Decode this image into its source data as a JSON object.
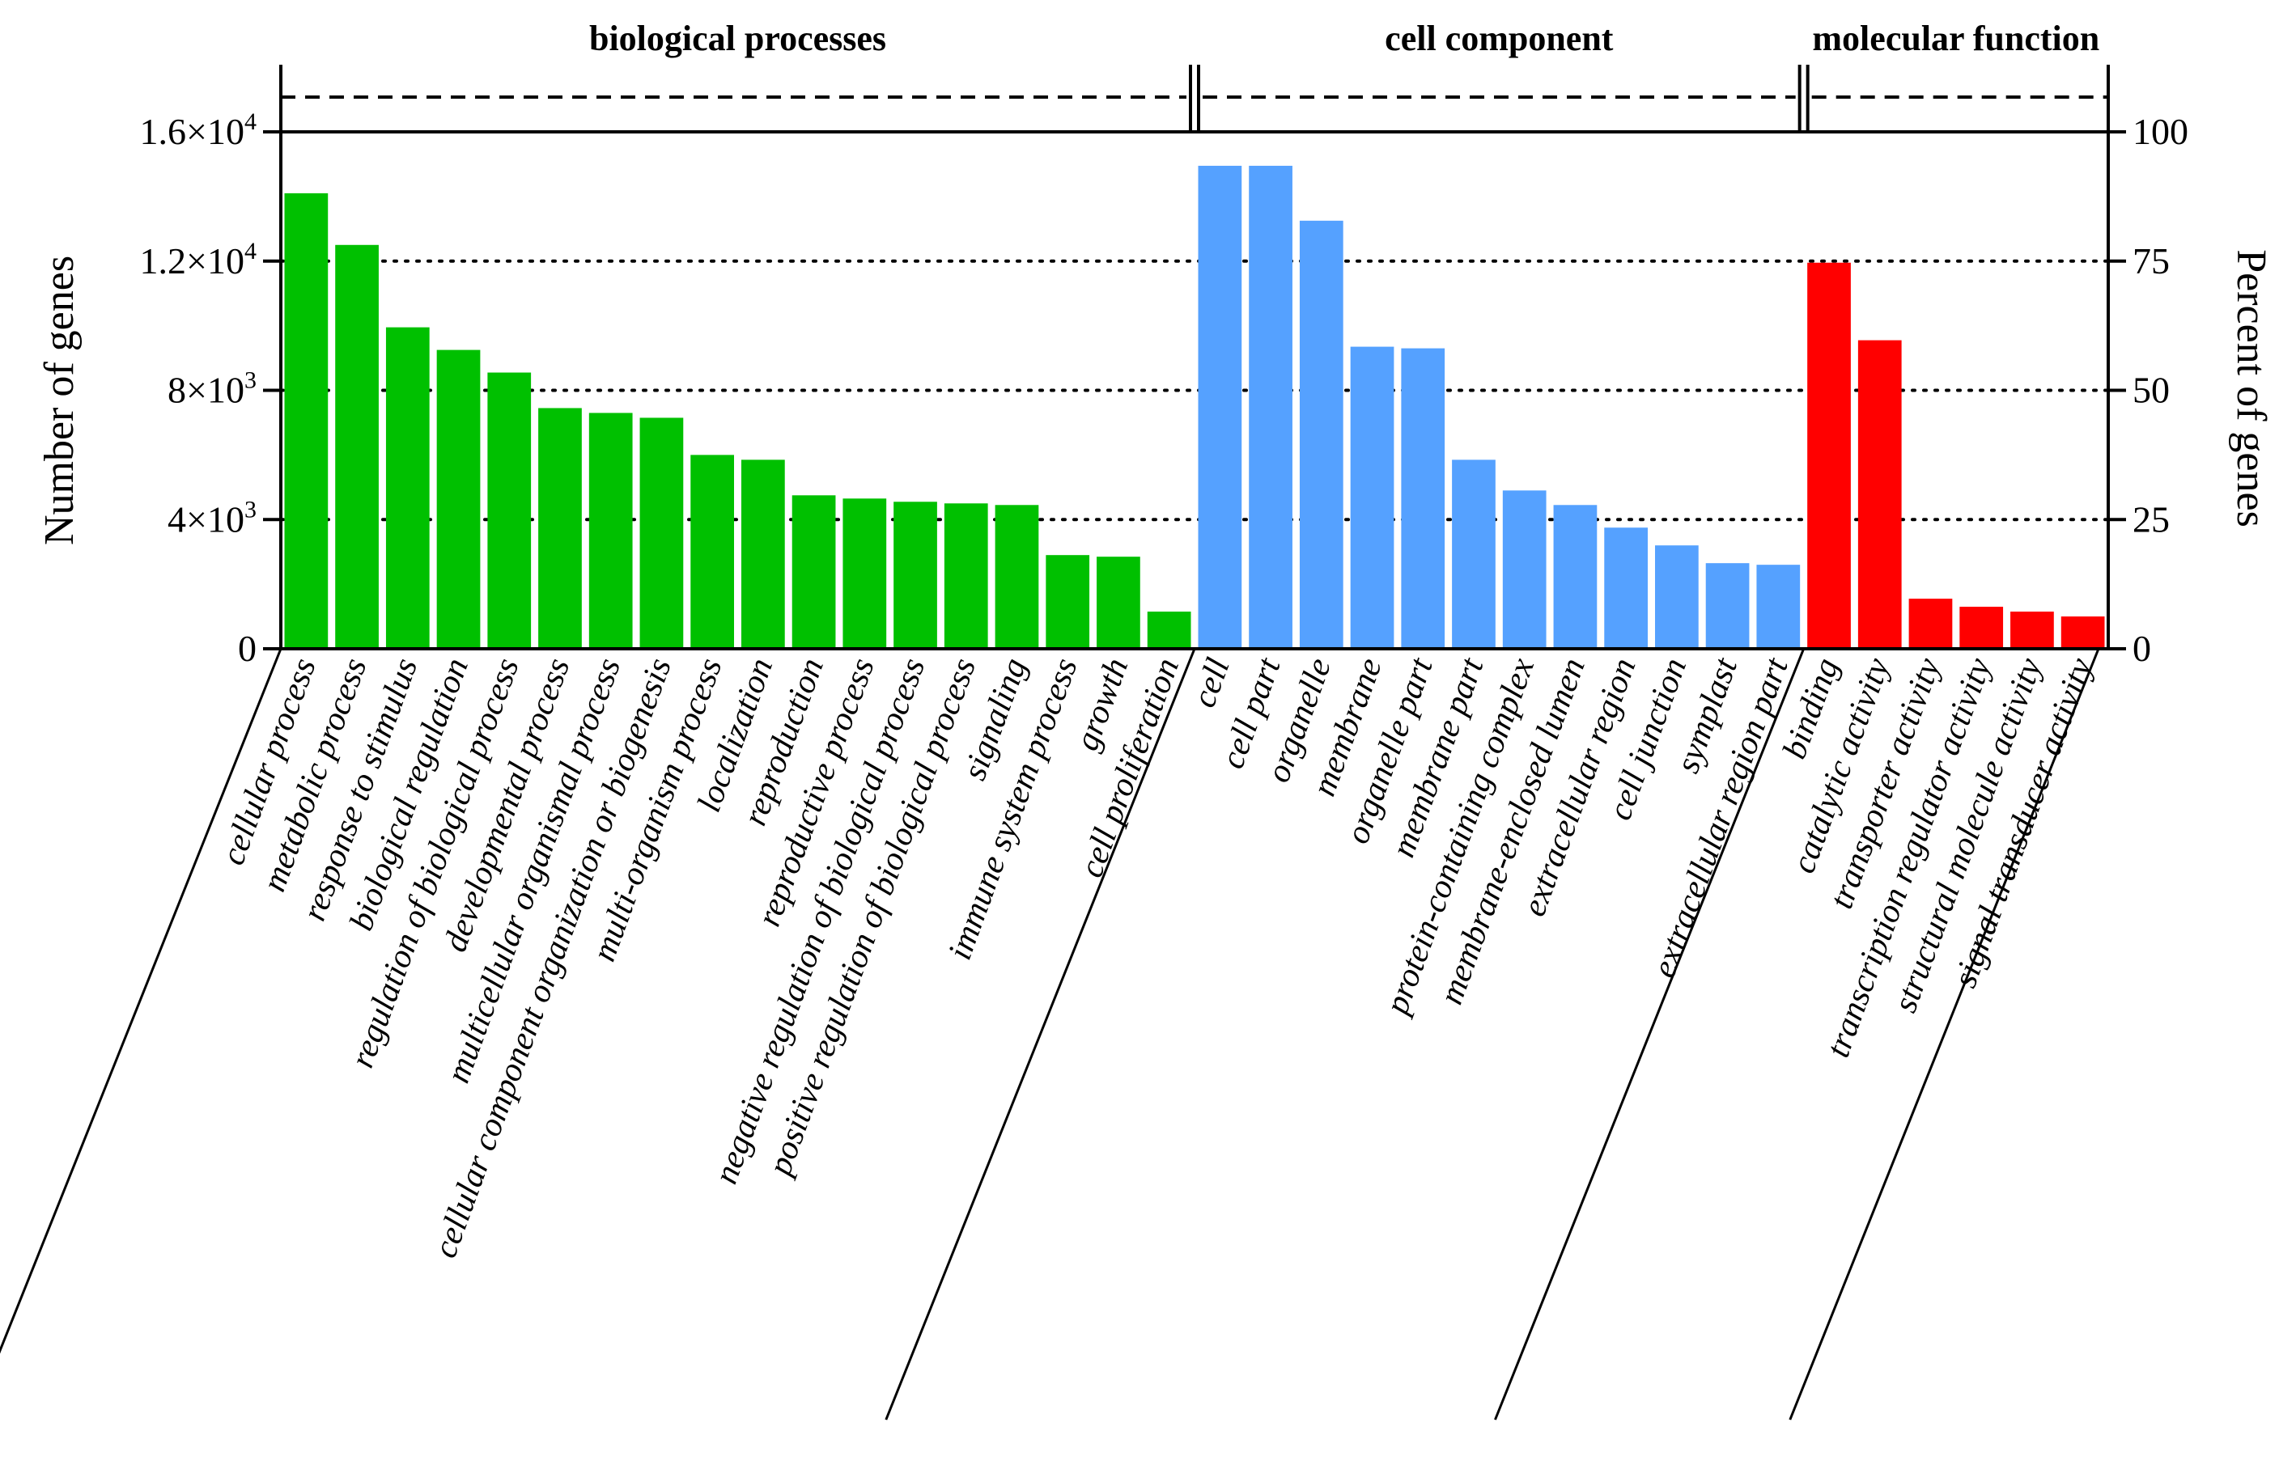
{
  "chart_data": {
    "type": "bar",
    "ylabel": "Number of genes",
    "y2label": "Percent of genes",
    "ylim": [
      0,
      16000
    ],
    "y2lim": [
      0,
      100
    ],
    "yticks": [
      {
        "value": 0,
        "label": "0"
      },
      {
        "value": 4000,
        "label": "4×10",
        "sup": "3"
      },
      {
        "value": 8000,
        "label": "8×10",
        "sup": "3"
      },
      {
        "value": 12000,
        "label": "1.2×10",
        "sup": "4"
      },
      {
        "value": 16000,
        "label": "1.6×10",
        "sup": "4"
      }
    ],
    "y2ticks": [
      {
        "value": 0,
        "label": "0"
      },
      {
        "value": 25,
        "label": "25"
      },
      {
        "value": 50,
        "label": "50"
      },
      {
        "value": 75,
        "label": "75"
      },
      {
        "value": 100,
        "label": "100"
      }
    ],
    "grid": "dotted horizontal",
    "groups": [
      {
        "name": "biological processes",
        "color": "#00c000",
        "categories": [
          "cellular process",
          "metabolic process",
          "response to stimulus",
          "biological regulation",
          "regulation of biological process",
          "developmental process",
          "multicellular organismal process",
          "cellular component organization or biogenesis",
          "multi-organism process",
          "localization",
          "reproduction",
          "reproductive process",
          "negative regulation of biological process",
          "positive regulation of biological process",
          "signaling",
          "immune system process",
          "growth",
          "cell proliferation"
        ],
        "values": [
          14100,
          12500,
          9950,
          9250,
          8550,
          7450,
          7300,
          7150,
          6000,
          5850,
          4750,
          4650,
          4550,
          4500,
          4450,
          2900,
          2850,
          1150
        ]
      },
      {
        "name": "cell component",
        "color": "#55a1ff",
        "categories": [
          "cell",
          "cell part",
          "organelle",
          "membrane",
          "organelle part",
          "membrane part",
          "protein-containing complex",
          "membrane-enclosed lumen",
          "extracellular region",
          "cell junction",
          "symplast",
          "extracellular region part"
        ],
        "values": [
          14950,
          14950,
          13250,
          9350,
          9300,
          5850,
          4900,
          4450,
          3750,
          3200,
          2650,
          2600
        ]
      },
      {
        "name": "molecular function",
        "color": "#ff0000",
        "categories": [
          "binding",
          "catalytic activity",
          "transporter activity",
          "transcription regulator activity",
          "structural molecule activity",
          "signal transducer activity"
        ],
        "values": [
          11950,
          9550,
          1550,
          1300,
          1150,
          1000
        ]
      }
    ]
  }
}
